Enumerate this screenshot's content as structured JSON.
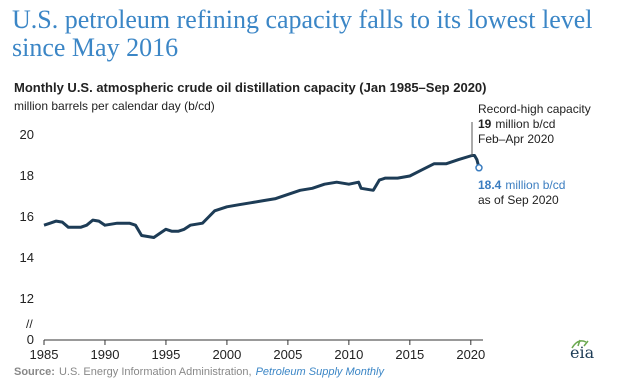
{
  "chart_data": {
    "type": "line",
    "title_lines": [
      "U.S. petroleum refining capacity falls to its lowest level",
      "since May 2016"
    ],
    "subtitle": "Monthly U.S. atmospheric crude oil distillation capacity (Jan 1985–Sep 2020)",
    "y_label": "million barrels per calendar day (b/cd)",
    "x": [
      1985.0,
      1985.5,
      1986.0,
      1986.5,
      1987.0,
      1988.0,
      1988.5,
      1989.0,
      1989.5,
      1990.0,
      1991.0,
      1992.0,
      1992.5,
      1993.0,
      1994.0,
      1994.5,
      1995.0,
      1995.5,
      1996.0,
      1996.5,
      1997.0,
      1998.0,
      1998.5,
      1999.0,
      2000.0,
      2001.0,
      2002.0,
      2003.0,
      2004.0,
      2005.0,
      2006.0,
      2007.0,
      2008.0,
      2009.0,
      2010.0,
      2010.8,
      2011.0,
      2012.0,
      2012.5,
      2013.0,
      2014.0,
      2015.0,
      2016.0,
      2017.0,
      2018.0,
      2019.0,
      2020.1,
      2020.3,
      2020.5,
      2020.67
    ],
    "series": [
      {
        "name": "Capacity",
        "color": "#1d3c56",
        "values": [
          15.6,
          15.7,
          15.8,
          15.75,
          15.5,
          15.5,
          15.6,
          15.85,
          15.8,
          15.6,
          15.7,
          15.7,
          15.6,
          15.1,
          15.0,
          15.2,
          15.4,
          15.3,
          15.3,
          15.4,
          15.6,
          15.7,
          16.0,
          16.3,
          16.5,
          16.6,
          16.7,
          16.8,
          16.9,
          17.1,
          17.3,
          17.4,
          17.6,
          17.7,
          17.6,
          17.7,
          17.4,
          17.3,
          17.8,
          17.9,
          17.9,
          18.0,
          18.3,
          18.6,
          18.6,
          18.8,
          19.0,
          19.0,
          18.8,
          18.4
        ]
      }
    ],
    "xlim": [
      1985,
      2021
    ],
    "xticks": [
      1985,
      1990,
      1995,
      2000,
      2005,
      2010,
      2015,
      2020
    ],
    "ylim": [
      0,
      20
    ],
    "yticks": [
      0,
      12,
      14,
      16,
      18,
      20
    ],
    "y_axis_break": [
      0,
      12
    ],
    "annotations": [
      {
        "heading": "Record-high capacity",
        "value": 19.0,
        "unit": "million b/cd",
        "note": "Feb–Apr 2020",
        "color": "#222222"
      },
      {
        "value": 18.4,
        "unit": "million b/cd",
        "note": "as of Sep 2020",
        "color": "#3b7dc0"
      }
    ],
    "source": {
      "label": "Source:",
      "text": "U.S. Energy Information Administration,",
      "publication": "Petroleum Supply Monthly"
    },
    "logo": "eia"
  }
}
